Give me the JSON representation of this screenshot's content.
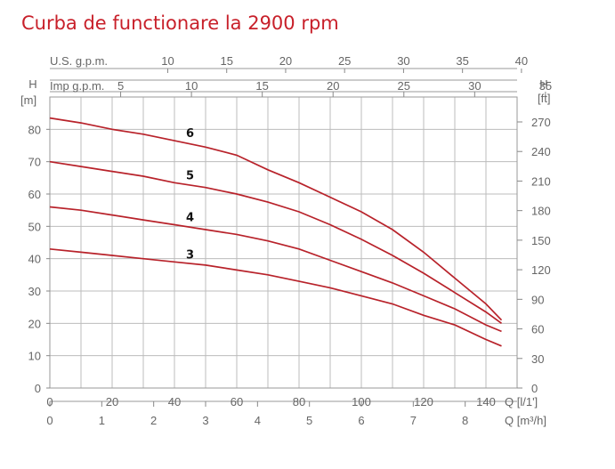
{
  "title": "Curba de functionare la 2900 rpm",
  "chart_data": {
    "type": "line",
    "title": "Curba de functionare la 2900 rpm",
    "grid": true,
    "x": [
      0,
      10,
      20,
      30,
      40,
      50,
      60,
      70,
      80,
      90,
      100,
      110,
      120,
      130,
      140,
      145
    ],
    "xlim": [
      0,
      150
    ],
    "ylim": [
      0,
      90
    ],
    "xlabel": "Q [l/1']",
    "ylabel": "H [m]",
    "x_ticks": [
      "0",
      "20",
      "40",
      "60",
      "80",
      "100",
      "120",
      "140"
    ],
    "y_ticks": [
      "0",
      "10",
      "20",
      "30",
      "40",
      "50",
      "60",
      "70",
      "80"
    ],
    "secondary_axes": [
      {
        "position": "bottom",
        "label": "Q [m³/h]",
        "ticks": [
          "0",
          "1",
          "2",
          "3",
          "4",
          "5",
          "6",
          "7",
          "8"
        ],
        "values": [
          0,
          1,
          2,
          3,
          4,
          5,
          6,
          7,
          8
        ],
        "factor": 16.667
      },
      {
        "position": "top",
        "label": "U.S. g.p.m.",
        "ticks": [
          "10",
          "15",
          "20",
          "25",
          "30",
          "35",
          "40"
        ],
        "values": [
          10,
          15,
          20,
          25,
          30,
          35,
          40
        ],
        "factor": 3.785
      },
      {
        "position": "top",
        "label": "Imp g.p.m.",
        "ticks": [
          "5",
          "10",
          "15",
          "20",
          "25",
          "30",
          "35"
        ],
        "values": [
          5,
          10,
          15,
          20,
          25,
          30,
          35
        ],
        "factor": 4.546
      },
      {
        "position": "right",
        "label": "H [ft]",
        "ticks": [
          "0",
          "30",
          "60",
          "90",
          "120",
          "150",
          "180",
          "210",
          "240",
          "270"
        ],
        "values": [
          0,
          30,
          60,
          90,
          120,
          150,
          180,
          210,
          240,
          270
        ],
        "factor": 0.3048
      }
    ],
    "series": [
      {
        "name": "6",
        "values": [
          83.5,
          82,
          80,
          78.5,
          76.5,
          74.5,
          72,
          67.5,
          63.5,
          59,
          54.5,
          49,
          42,
          34,
          26,
          21
        ]
      },
      {
        "name": "5",
        "values": [
          70,
          68.5,
          67,
          65.5,
          63.5,
          62,
          60,
          57.5,
          54.5,
          50.5,
          46,
          41,
          35.5,
          29.5,
          23.5,
          20
        ]
      },
      {
        "name": "4",
        "values": [
          56,
          55,
          53.5,
          52,
          50.5,
          49,
          47.5,
          45.5,
          43,
          39.5,
          36,
          32.5,
          28.5,
          24.5,
          19.5,
          17.5
        ]
      },
      {
        "name": "3",
        "values": [
          43,
          42,
          41,
          40,
          39,
          38,
          36.5,
          35,
          33,
          31,
          28.5,
          26,
          22.5,
          19.5,
          15,
          13
        ]
      }
    ],
    "line_color": "#b8222a",
    "title_color": "#c8202a"
  }
}
